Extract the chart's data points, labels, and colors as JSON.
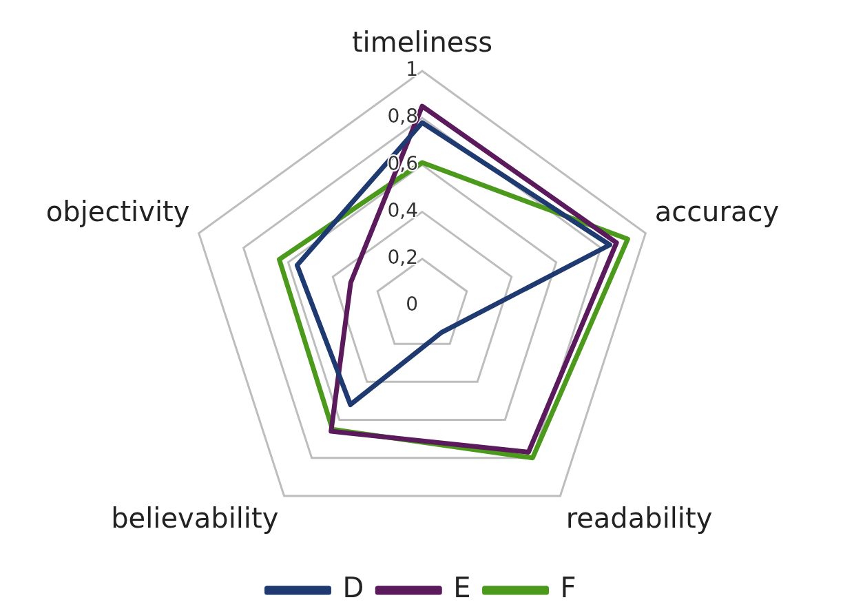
{
  "chart_data": {
    "type": "radar",
    "categories": [
      "timeliness",
      "accuracy",
      "readability",
      "believability",
      "objectivity"
    ],
    "series": [
      {
        "name": "D",
        "color": "#1f3a70",
        "values": [
          0.78,
          0.84,
          0.14,
          0.52,
          0.56
        ]
      },
      {
        "name": "E",
        "color": "#5a1a5c",
        "values": [
          0.85,
          0.87,
          0.77,
          0.66,
          0.32
        ]
      },
      {
        "name": "F",
        "color": "#4c9a1c",
        "values": [
          0.61,
          0.92,
          0.8,
          0.65,
          0.64
        ]
      }
    ],
    "ylim": [
      0,
      1
    ],
    "yticks": [
      {
        "value": 0,
        "label": "0"
      },
      {
        "value": 0.2,
        "label": "0,2"
      },
      {
        "value": 0.4,
        "label": "0,4"
      },
      {
        "value": 0.6,
        "label": "0,6"
      },
      {
        "value": 0.8,
        "label": "0,8"
      },
      {
        "value": 1,
        "label": "1"
      }
    ],
    "grid": true,
    "legend": "bottom",
    "marker": "none",
    "line_style": "solid"
  }
}
